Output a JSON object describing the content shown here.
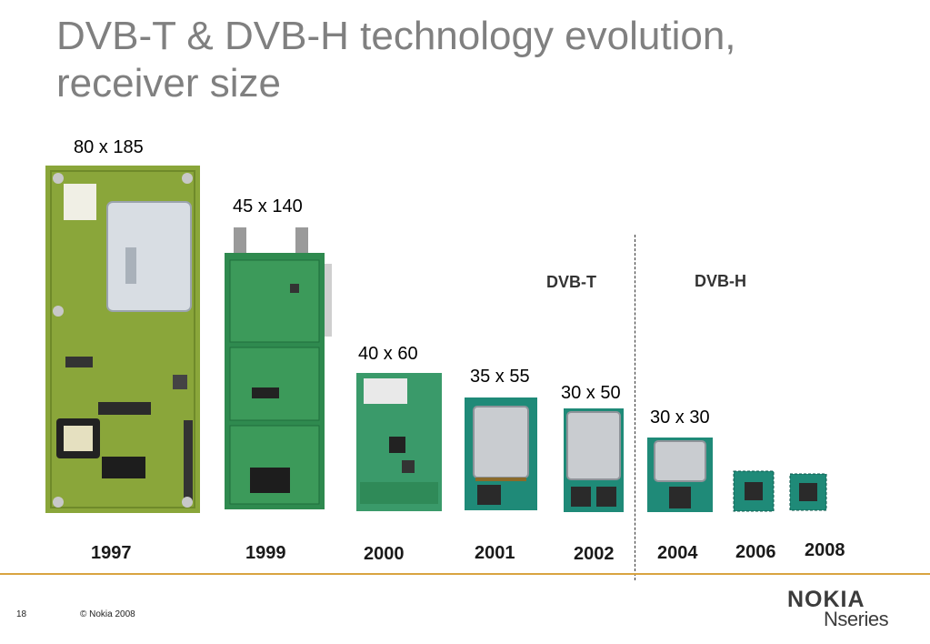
{
  "title_line1": "DVB-T & DVB-H technology evolution,",
  "title_line2": "receiver size",
  "labels": {
    "dvbt": "DVB-T",
    "dvbh": "DVB-H"
  },
  "dimensions": [
    "80 x 185",
    "45 x 140",
    "40 x 60",
    "35 x 55",
    "30 x 50",
    "30 x 30"
  ],
  "years": [
    "1997",
    "1999",
    "2000",
    "2001",
    "2002",
    "2004",
    "2006",
    "2008"
  ],
  "footer": {
    "page_number": "18",
    "copyright": "© Nokia 2008",
    "brand": "NOKIA",
    "series": "Nseries"
  },
  "colors": {
    "title": "#808080",
    "board_green_1997": "#8aa63a",
    "board_green": "#2f8a4f",
    "module_teal": "#1f8a78",
    "footer_line": "#d9a441"
  }
}
